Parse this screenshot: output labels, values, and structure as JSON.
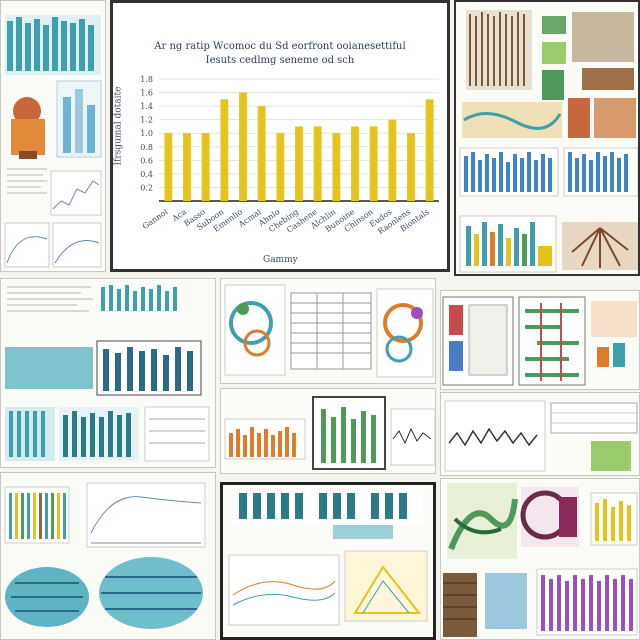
{
  "collage": {
    "theme": {
      "teal": "#3e9fae",
      "gold": "#e6c21c",
      "orange": "#e07b2a",
      "purple": "#9b4fc0",
      "green": "#4f9a5a",
      "brown": "#8b6a4a"
    }
  },
  "chart_data": {
    "type": "bar",
    "title_lines": [
      "Ar ng ratip Wcomoc du Sd eorfront ooianesettiful",
      "Iesuts cedlmg seneme od sch"
    ],
    "categories": [
      "Gannoi",
      "Aca",
      "Basso",
      "Suboon",
      "Emenlio",
      "Acmai",
      "Ahnlo",
      "Chebing",
      "Cashene",
      "Alchlin",
      "Bunoine",
      "Chinson",
      "Eudos",
      "Raonlens",
      "Biontals"
    ],
    "values": [
      1.0,
      1.0,
      1.0,
      1.5,
      1.6,
      1.4,
      1.0,
      1.1,
      1.1,
      1.0,
      1.1,
      1.1,
      1.2,
      1.0,
      1.5
    ],
    "yticks": [
      "1.8",
      "1.6",
      "1.4",
      "1.2",
      "1.0",
      "0.8",
      "0.6",
      "0.4",
      "0.2"
    ],
    "ylim": [
      0,
      1.8
    ],
    "ylabel": "Ifrsgumal dotaite",
    "xlabel": "Gammy",
    "color": "#e6c21c"
  }
}
